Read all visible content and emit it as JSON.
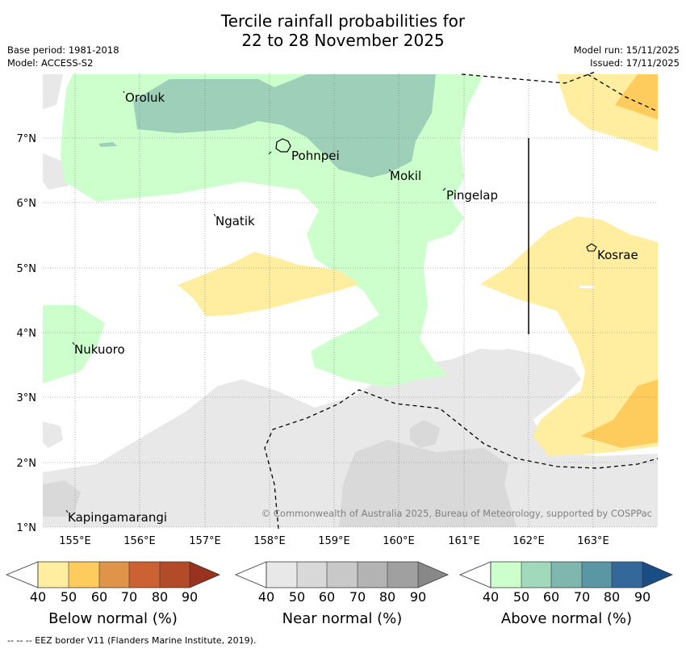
{
  "title": {
    "line1": "Tercile rainfall probabilities for",
    "line2": "22 to 28 November 2025"
  },
  "meta": {
    "base_period": "Base period: 1981-2018",
    "model": "Model: ACCESS-S2",
    "model_run": "Model run: 15/11/2025",
    "issued": "Issued: 17/11/2025"
  },
  "map": {
    "lon_ticks": [
      "155°E",
      "156°E",
      "157°E",
      "158°E",
      "159°E",
      "160°E",
      "161°E",
      "162°E",
      "163°E"
    ],
    "lat_ticks": [
      "7°N",
      "6°N",
      "5°N",
      "4°N",
      "3°N",
      "2°N",
      "1°N"
    ],
    "places": [
      "Oroluk",
      "Pohnpei",
      "Mokil",
      "Pingelap",
      "Ngatik",
      "Kosrae",
      "Nukuoro",
      "Kapingamarangi"
    ],
    "copyright": "© Commonwealth of Australia 2025, Bureau of Meteorology, supported by COSPPac"
  },
  "legends": [
    {
      "name": "below",
      "label": "Below normal (%)",
      "ticks": [
        "40",
        "50",
        "60",
        "70",
        "80",
        "90"
      ],
      "colors": [
        "#ffeda0",
        "#fecc5c",
        "#e0944a",
        "#cc6233",
        "#b34a28",
        "#97331f"
      ]
    },
    {
      "name": "near",
      "label": "Near normal (%)",
      "ticks": [
        "40",
        "50",
        "60",
        "70",
        "80",
        "90"
      ],
      "colors": [
        "#e8e8e8",
        "#d9d9d9",
        "#c8c8c8",
        "#b3b3b3",
        "#a0a0a0",
        "#888888"
      ]
    },
    {
      "name": "above",
      "label": "Above normal (%)",
      "ticks": [
        "40",
        "50",
        "60",
        "70",
        "80",
        "90"
      ],
      "colors": [
        "#ccffcc",
        "#a1d9bd",
        "#7fb6ad",
        "#5a96a3",
        "#34689a",
        "#184d86"
      ]
    }
  ],
  "footer": "--  --  -- EEZ border V11 (Flanders Marine Institute, 2019).",
  "colors": {
    "green_light": "#ccffcc",
    "green_mid": "#9dcfb9",
    "yellow_light": "#ffeda0",
    "yellow_mid": "#fecc5c",
    "grey_light": "#e8e8e8",
    "grey_mid": "#d9d9d9"
  }
}
